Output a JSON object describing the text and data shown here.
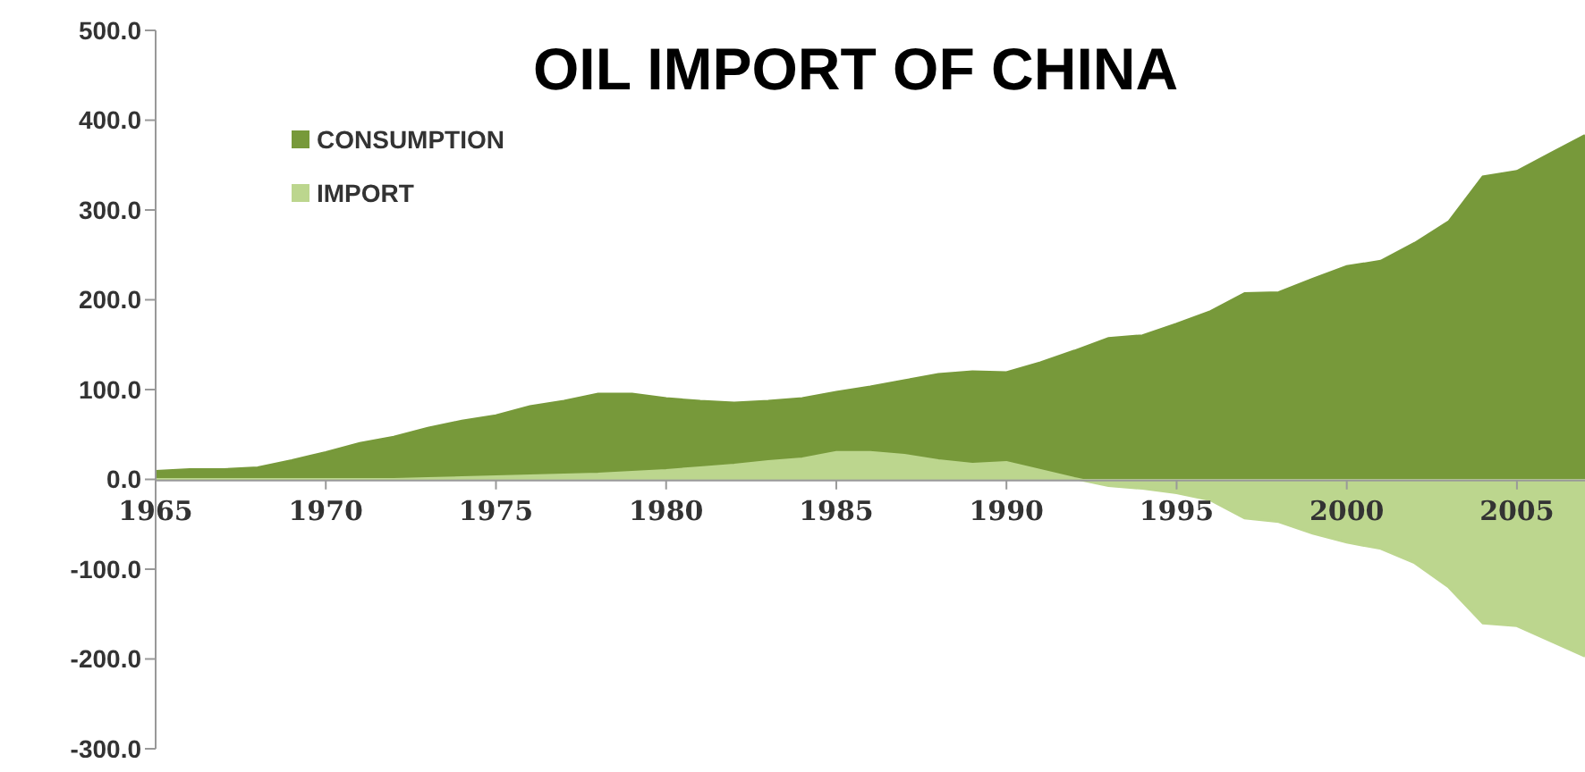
{
  "chart_data": {
    "type": "area",
    "title": "OIL IMPORT OF CHINA",
    "x": [
      1965,
      1966,
      1967,
      1968,
      1969,
      1970,
      1971,
      1972,
      1973,
      1974,
      1975,
      1976,
      1977,
      1978,
      1979,
      1980,
      1981,
      1982,
      1983,
      1984,
      1985,
      1986,
      1987,
      1988,
      1989,
      1990,
      1991,
      1992,
      1993,
      1994,
      1995,
      1996,
      1997,
      1998,
      1999,
      2000,
      2001,
      2002,
      2003,
      2004,
      2005,
      2006,
      2007
    ],
    "series": [
      {
        "name": "CONSUMPTION",
        "color": "#77993a",
        "values": [
          9,
          11,
          11,
          13,
          21,
          30,
          40,
          47,
          57,
          65,
          71,
          81,
          87,
          95,
          95,
          90,
          87,
          85,
          87,
          90,
          97,
          103,
          110,
          117,
          120,
          119,
          130,
          143,
          157,
          160,
          173,
          187,
          207,
          208,
          223,
          237,
          243,
          263,
          287,
          337,
          343,
          363,
          383
        ]
      },
      {
        "name": "IMPORT",
        "color": "#bcd68e",
        "values": [
          0,
          0,
          0,
          0,
          0,
          0,
          0,
          0,
          1,
          2,
          3,
          4,
          5,
          6,
          8,
          10,
          13,
          16,
          20,
          23,
          30,
          30,
          27,
          21,
          17,
          19,
          10,
          1,
          -7,
          -10,
          -15,
          -23,
          -43,
          -47,
          -60,
          -70,
          -77,
          -93,
          -120,
          -160,
          -163,
          -180,
          -197
        ]
      }
    ],
    "xticks": [
      1965,
      1970,
      1975,
      1980,
      1985,
      1990,
      1995,
      2000,
      2005
    ],
    "xlim": [
      1965,
      2007
    ],
    "ylim": [
      -300,
      500
    ],
    "yticks": [
      {
        "value": -300,
        "label": "-300.0"
      },
      {
        "value": -200,
        "label": "-200.0"
      },
      {
        "value": -100,
        "label": "-100.0"
      },
      {
        "value": 0,
        "label": "0.0"
      },
      {
        "value": 100,
        "label": "100.0"
      },
      {
        "value": 200,
        "label": "200.0"
      },
      {
        "value": 300,
        "label": "300.0"
      },
      {
        "value": 400,
        "label": "400.0"
      },
      {
        "value": 500,
        "label": "500.0"
      }
    ],
    "legend": "top left",
    "grid": false
  }
}
